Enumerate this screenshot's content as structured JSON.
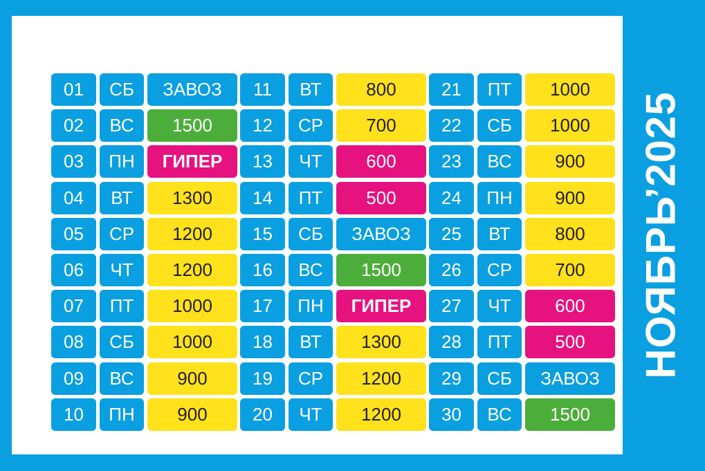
{
  "title": "НОЯБРЬ’2025",
  "colors": {
    "background": "#0a9fe0",
    "panel": "#ffffff",
    "blue": "#0a9fe0",
    "green": "#4cae3a",
    "yellow": "#ffe11c",
    "pink": "#e6127f"
  },
  "days": [
    {
      "num": "01",
      "dow": "СБ",
      "value": "ЗАВОЗ",
      "style": "blue"
    },
    {
      "num": "02",
      "dow": "ВС",
      "value": "1500",
      "style": "green"
    },
    {
      "num": "03",
      "dow": "ПН",
      "value": "ГИПЕР",
      "style": "pink"
    },
    {
      "num": "04",
      "dow": "ВТ",
      "value": "1300",
      "style": "yellow"
    },
    {
      "num": "05",
      "dow": "СР",
      "value": "1200",
      "style": "yellow"
    },
    {
      "num": "06",
      "dow": "ЧТ",
      "value": "1200",
      "style": "yellow"
    },
    {
      "num": "07",
      "dow": "ПТ",
      "value": "1000",
      "style": "yellow"
    },
    {
      "num": "08",
      "dow": "СБ",
      "value": "1000",
      "style": "yellow"
    },
    {
      "num": "09",
      "dow": "ВС",
      "value": "900",
      "style": "yellow"
    },
    {
      "num": "10",
      "dow": "ПН",
      "value": "900",
      "style": "yellow"
    },
    {
      "num": "11",
      "dow": "ВТ",
      "value": "800",
      "style": "yellow"
    },
    {
      "num": "12",
      "dow": "СР",
      "value": "700",
      "style": "yellow"
    },
    {
      "num": "13",
      "dow": "ЧТ",
      "value": "600",
      "style": "pink-light"
    },
    {
      "num": "14",
      "dow": "ПТ",
      "value": "500",
      "style": "pink-light"
    },
    {
      "num": "15",
      "dow": "СБ",
      "value": "ЗАВОЗ",
      "style": "blue"
    },
    {
      "num": "16",
      "dow": "ВС",
      "value": "1500",
      "style": "green"
    },
    {
      "num": "17",
      "dow": "ПН",
      "value": "ГИПЕР",
      "style": "pink"
    },
    {
      "num": "18",
      "dow": "ВТ",
      "value": "1300",
      "style": "yellow"
    },
    {
      "num": "19",
      "dow": "СР",
      "value": "1200",
      "style": "yellow"
    },
    {
      "num": "20",
      "dow": "ЧТ",
      "value": "1200",
      "style": "yellow"
    },
    {
      "num": "21",
      "dow": "ПТ",
      "value": "1000",
      "style": "yellow"
    },
    {
      "num": "22",
      "dow": "СБ",
      "value": "1000",
      "style": "yellow"
    },
    {
      "num": "23",
      "dow": "ВС",
      "value": "900",
      "style": "yellow"
    },
    {
      "num": "24",
      "dow": "ПН",
      "value": "900",
      "style": "yellow"
    },
    {
      "num": "25",
      "dow": "ВТ",
      "value": "800",
      "style": "yellow"
    },
    {
      "num": "26",
      "dow": "СР",
      "value": "700",
      "style": "yellow"
    },
    {
      "num": "27",
      "dow": "ЧТ",
      "value": "600",
      "style": "pink-light"
    },
    {
      "num": "28",
      "dow": "ПТ",
      "value": "500",
      "style": "pink-light"
    },
    {
      "num": "29",
      "dow": "СБ",
      "value": "ЗАВОЗ",
      "style": "blue"
    },
    {
      "num": "30",
      "dow": "ВС",
      "value": "1500",
      "style": "green"
    }
  ]
}
